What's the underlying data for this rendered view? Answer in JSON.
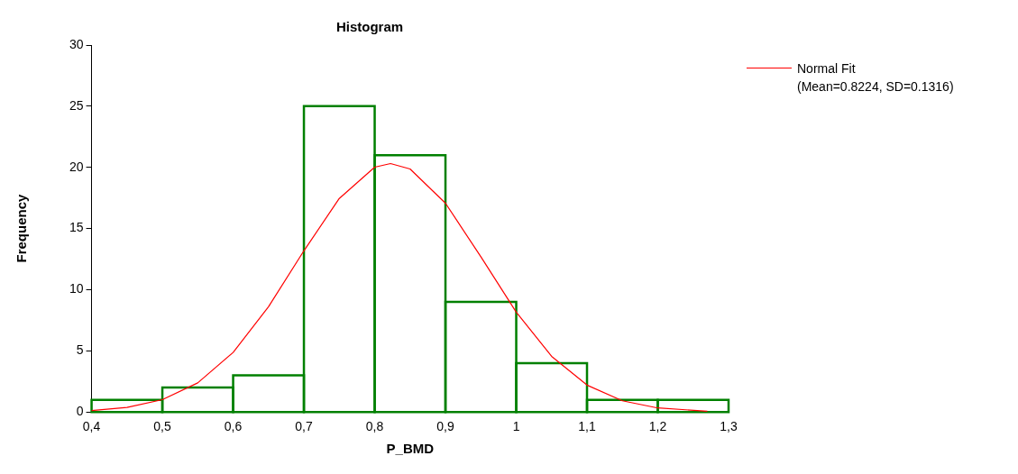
{
  "chart_data": {
    "type": "histogram",
    "title": "Histogram",
    "xlabel": "P_BMD",
    "ylabel": "Frequency",
    "bins": [
      0.4,
      0.5,
      0.6,
      0.7,
      0.8,
      0.9,
      1.0,
      1.1,
      1.2,
      1.3
    ],
    "values": [
      1,
      2,
      3,
      25,
      21,
      9,
      4,
      1,
      1
    ],
    "color": "#008000",
    "series": [
      {
        "type": "line",
        "name": "Normal Fit\n(Mean=0.8224, SD=0.1316)",
        "color": "#ff0000",
        "x": [
          0.4,
          0.45,
          0.5,
          0.55,
          0.6,
          0.65,
          0.7,
          0.75,
          0.8,
          0.8224,
          0.85,
          0.9,
          0.95,
          1.0,
          1.05,
          1.1,
          1.15,
          1.2,
          1.27
        ],
        "values": [
          0.12,
          0.37,
          1.01,
          2.38,
          4.87,
          8.61,
          13.18,
          17.46,
          20.02,
          20.31,
          19.87,
          17.07,
          12.69,
          8.17,
          4.55,
          2.2,
          0.92,
          0.33,
          0.06
        ]
      }
    ],
    "xlim": [
      0.4,
      1.3
    ],
    "xticks": [
      {
        "value": 0.4,
        "label": "0,4"
      },
      {
        "value": 0.5,
        "label": "0,5"
      },
      {
        "value": 0.6,
        "label": "0,6"
      },
      {
        "value": 0.7,
        "label": "0,7"
      },
      {
        "value": 0.8,
        "label": "0,8"
      },
      {
        "value": 0.9,
        "label": "0,9"
      },
      {
        "value": 1,
        "label": "1"
      },
      {
        "value": 1.1,
        "label": "1,1"
      },
      {
        "value": 1.2,
        "label": "1,2"
      },
      {
        "value": 1.3,
        "label": "1,3"
      }
    ],
    "ylim": [
      0,
      30
    ],
    "yticks": [
      0,
      5,
      10,
      15,
      20,
      25,
      30
    ],
    "legend": "top right"
  }
}
